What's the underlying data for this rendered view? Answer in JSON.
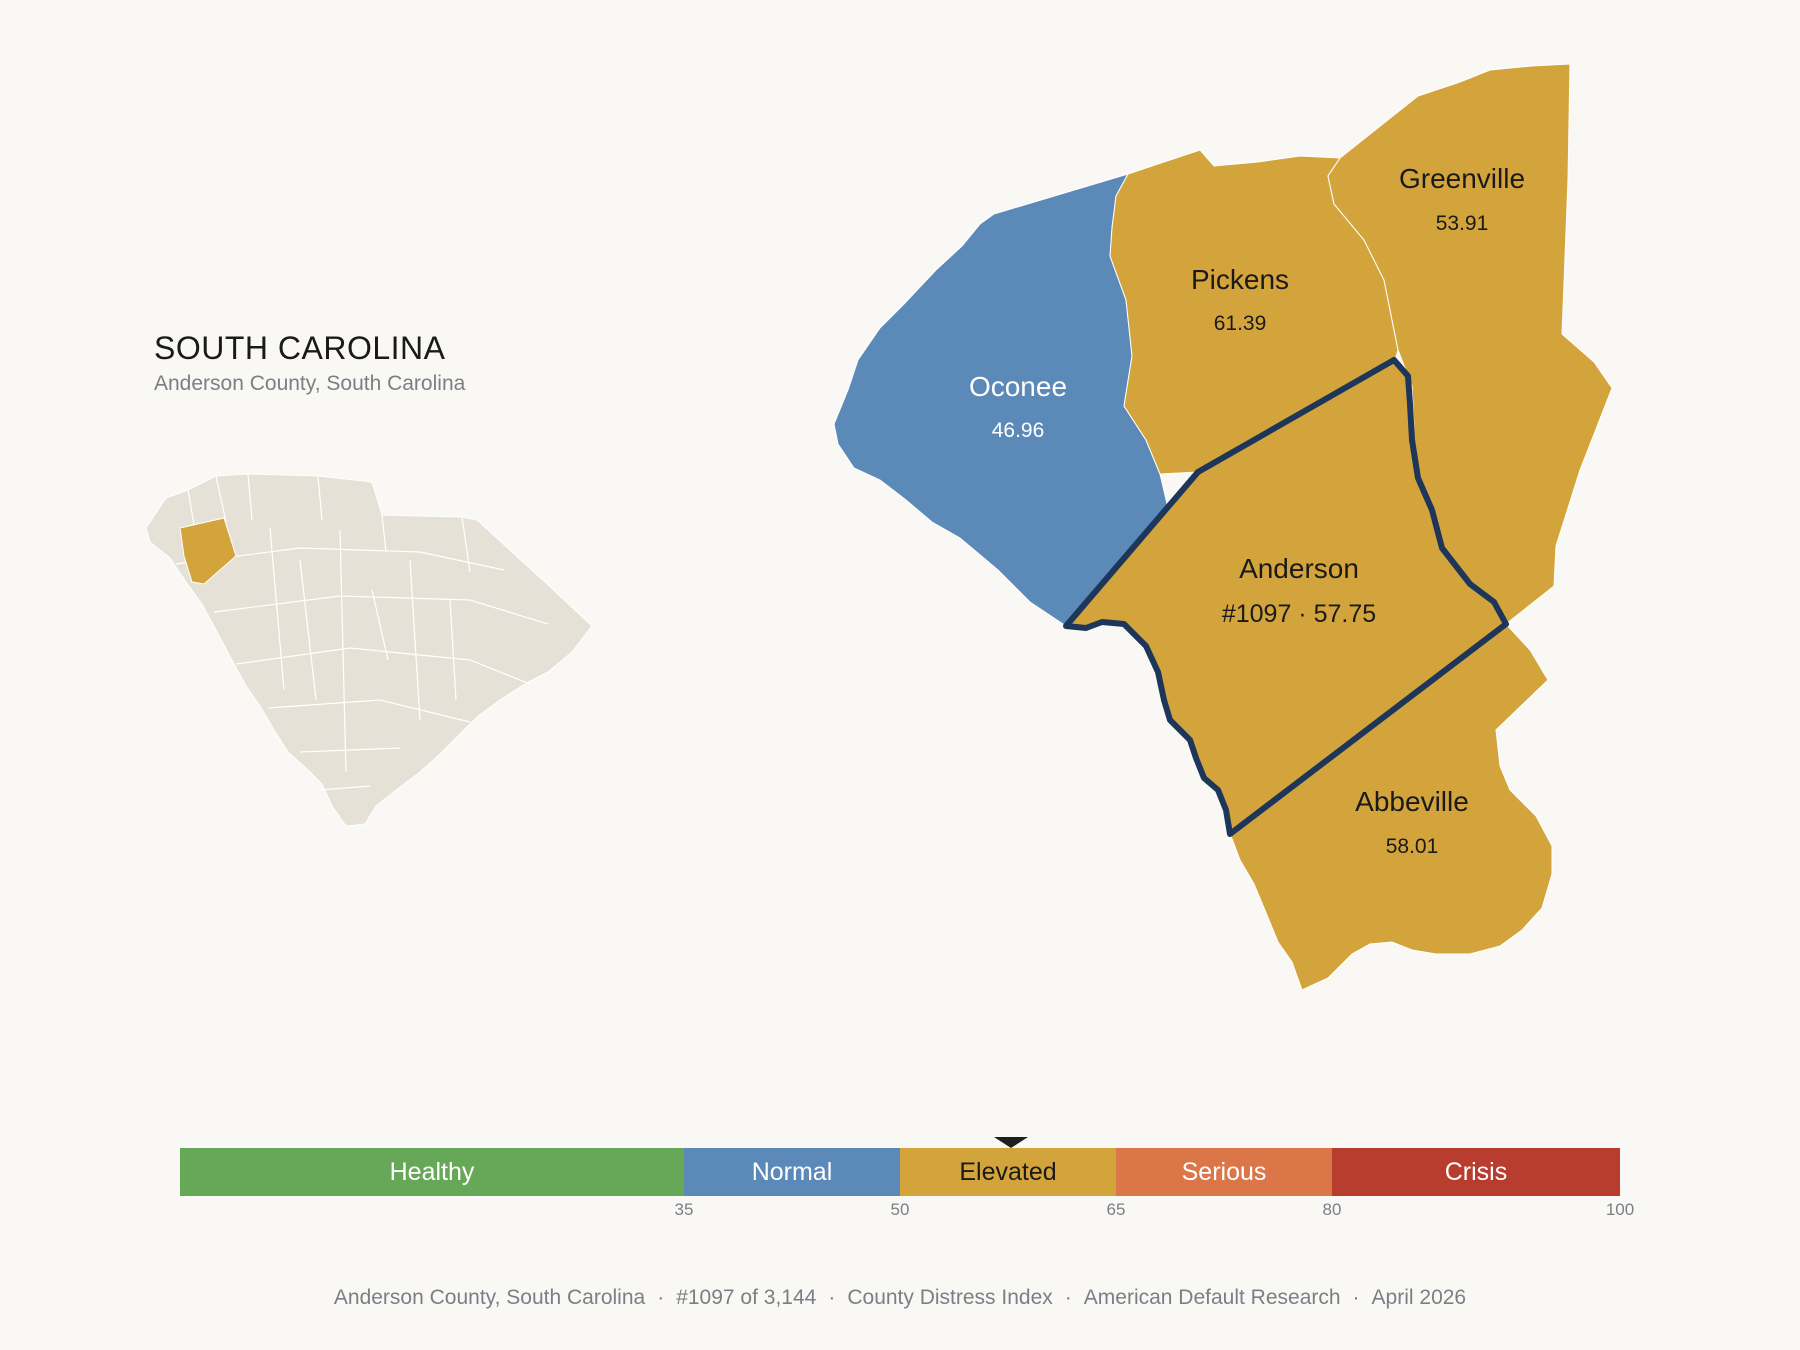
{
  "header": {
    "state": "SOUTH CAROLINA",
    "subtitle": "Anderson County, South Carolina"
  },
  "colors": {
    "background": "#f9f8f4",
    "elevated": "#d4a43c",
    "normal": "#5b89b8",
    "healthy": "#67a758",
    "serious": "#db7648",
    "crisis": "#b83d2e",
    "inset_base": "#e6e1d6",
    "highlight_outline": "#1d3659"
  },
  "counties": [
    {
      "name": "Greenville",
      "value": "53.91",
      "category": "elevated"
    },
    {
      "name": "Pickens",
      "value": "61.39",
      "category": "elevated"
    },
    {
      "name": "Oconee",
      "value": "46.96",
      "category": "normal"
    },
    {
      "name": "Anderson",
      "value": "#1097 · 57.75",
      "category": "elevated",
      "focus": true
    },
    {
      "name": "Abbeville",
      "value": "58.01",
      "category": "elevated"
    }
  ],
  "legend": {
    "segments": [
      {
        "label": "Healthy",
        "from": 0,
        "to": 35,
        "color": "#67a758",
        "text_color": "#ffffff"
      },
      {
        "label": "Normal",
        "from": 35,
        "to": 50,
        "color": "#5b89b8",
        "text_color": "#ffffff"
      },
      {
        "label": "Elevated",
        "from": 50,
        "to": 65,
        "color": "#d4a43c",
        "text_color": "#1a1a1a"
      },
      {
        "label": "Serious",
        "from": 65,
        "to": 80,
        "color": "#db7648",
        "text_color": "#ffffff"
      },
      {
        "label": "Crisis",
        "from": 80,
        "to": 100,
        "color": "#b83d2e",
        "text_color": "#ffffff"
      }
    ],
    "ticks": [
      "35",
      "50",
      "65",
      "80",
      "100"
    ],
    "marker_value": 57.75
  },
  "footer": {
    "place": "Anderson County, South Carolina",
    "rank": "#1097 of 3,144",
    "index": "County Distress Index",
    "source": "American Default Research",
    "date": "April 2026"
  }
}
